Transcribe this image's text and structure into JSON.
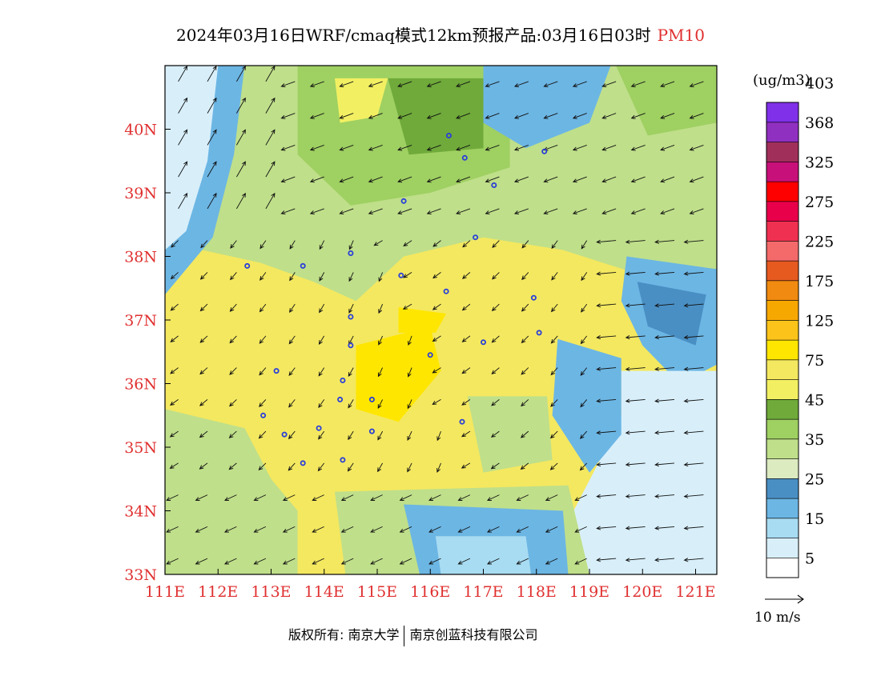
{
  "title": {
    "main": "2024年03月16日WRF/cmaq模式12km预报产品:03月16日03时",
    "pollutant": "PM10"
  },
  "map": {
    "lon_range": [
      111,
      121.4
    ],
    "lat_range": [
      33,
      41
    ],
    "lon_ticks": [
      "111E",
      "112E",
      "113E",
      "114E",
      "115E",
      "116E",
      "117E",
      "118E",
      "119E",
      "120E",
      "121E"
    ],
    "lat_ticks": [
      "33N",
      "34N",
      "35N",
      "36N",
      "37N",
      "38N",
      "39N",
      "40N"
    ],
    "tick_color": "#e03030"
  },
  "legend": {
    "unit": "(ug/m3)",
    "colors": [
      "#ffffff",
      "#d8effa",
      "#a8dcf2",
      "#6cb6e4",
      "#4a8fc4",
      "#dcebc0",
      "#bfdf8a",
      "#9fd062",
      "#6faa3a",
      "#f2f062",
      "#f4e860",
      "#ffe600",
      "#fcc41a",
      "#f7a800",
      "#f08a10",
      "#e65a20",
      "#f46a6a",
      "#f03050",
      "#e8004a",
      "#ff0000",
      "#c8107a",
      "#a0305a",
      "#9030c0",
      "#8030e8"
    ],
    "labels": [
      "5",
      "15",
      "25",
      "35",
      "45",
      "75",
      "125",
      "175",
      "225",
      "275",
      "325",
      "368",
      "403"
    ]
  },
  "wind_reference": {
    "label": "10 m/s"
  },
  "footer": {
    "left": "版权所有: 南京大学",
    "right": "南京创蓝科技有限公司"
  },
  "stations": [
    [
      116.35,
      39.9
    ],
    [
      116.65,
      39.55
    ],
    [
      117.2,
      39.12
    ],
    [
      118.15,
      39.65
    ],
    [
      115.5,
      38.87
    ],
    [
      116.85,
      38.3
    ],
    [
      114.5,
      38.05
    ],
    [
      112.55,
      37.85
    ],
    [
      113.6,
      37.85
    ],
    [
      115.45,
      37.7
    ],
    [
      116.3,
      37.45
    ],
    [
      117.95,
      37.35
    ],
    [
      114.5,
      37.05
    ],
    [
      118.05,
      36.8
    ],
    [
      117.0,
      36.65
    ],
    [
      114.5,
      36.6
    ],
    [
      116.0,
      36.45
    ],
    [
      113.1,
      36.2
    ],
    [
      114.35,
      36.05
    ],
    [
      114.3,
      35.75
    ],
    [
      114.9,
      35.75
    ],
    [
      112.85,
      35.5
    ],
    [
      116.6,
      35.4
    ],
    [
      113.25,
      35.2
    ],
    [
      113.9,
      35.3
    ],
    [
      114.9,
      35.25
    ],
    [
      114.35,
      34.8
    ],
    [
      113.6,
      34.75
    ]
  ]
}
